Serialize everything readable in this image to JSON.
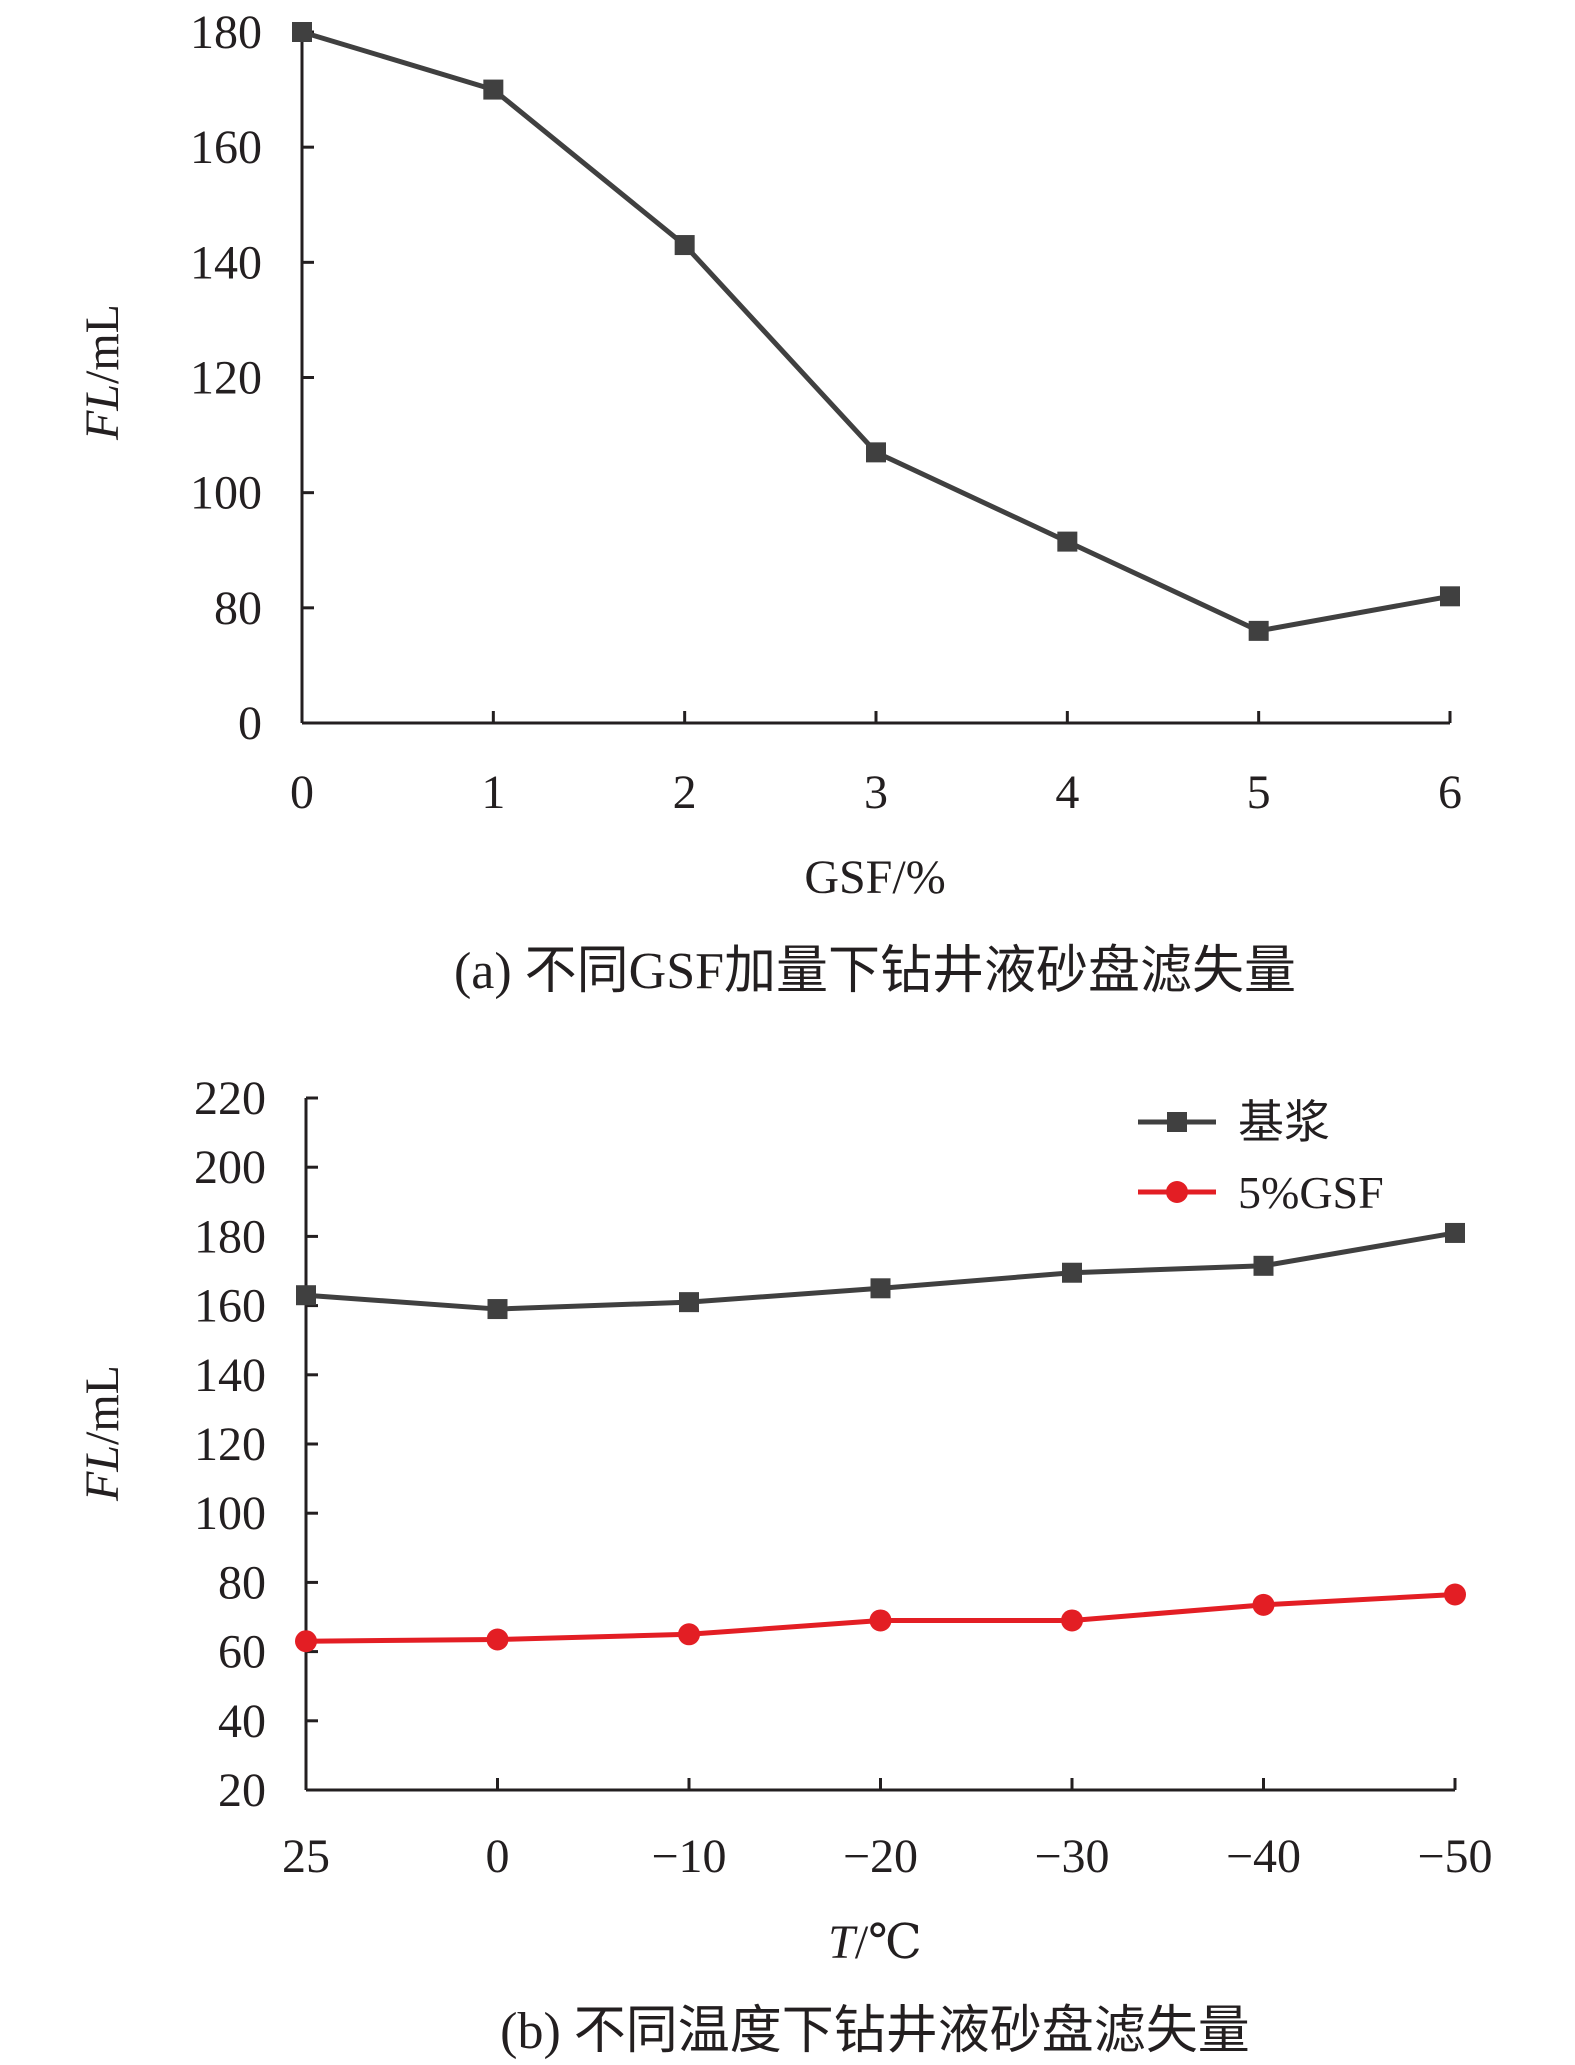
{
  "chart_data": [
    {
      "type": "line",
      "caption": "(a) 不同GSF加量下钻井液砂盘滤失量",
      "xlabel": "GSF/%",
      "ylabel": "FL/mL",
      "ylabel_italic": "FL",
      "ylabel_unit": "/mL",
      "categories": [
        "0",
        "1",
        "2",
        "3",
        "4",
        "5",
        "6"
      ],
      "x": [
        0,
        1,
        2,
        3,
        4,
        5,
        6
      ],
      "y_ticks": [
        0,
        80,
        100,
        120,
        140,
        160,
        180
      ],
      "y_tick_labels": [
        "0",
        "80",
        "100",
        "120",
        "140",
        "160",
        "180"
      ],
      "axis_break": {
        "below": 60,
        "display_at": 0
      },
      "ylim": [
        0,
        180
      ],
      "grid": false,
      "series": [
        {
          "values": [
            180,
            170,
            143,
            107,
            91.5,
            76,
            82
          ],
          "color": "#404040",
          "marker": "square"
        }
      ]
    },
    {
      "type": "line",
      "caption": "(b) 不同温度下钻井液砂盘滤失量",
      "xlabel": "T/℃",
      "xlabel_italic": "T",
      "xlabel_unit": "/℃",
      "ylabel": "FL/mL",
      "ylabel_italic": "FL",
      "ylabel_unit": "/mL",
      "categories": [
        "25",
        "0",
        "−10",
        "−20",
        "−30",
        "−40",
        "−50"
      ],
      "ylim": [
        20,
        220
      ],
      "y_ticks": [
        20,
        40,
        60,
        80,
        100,
        120,
        140,
        160,
        180,
        200,
        220
      ],
      "grid": false,
      "legend": "top-right",
      "series": [
        {
          "name": "基浆",
          "values": [
            163,
            159,
            161,
            165,
            169.5,
            171.5,
            181
          ],
          "color": "#404040",
          "marker": "square"
        },
        {
          "name": "5%GSF",
          "values": [
            63,
            63.5,
            65,
            69,
            69,
            73.5,
            76.5
          ],
          "color": "#e31e24",
          "marker": "circle"
        }
      ]
    }
  ]
}
